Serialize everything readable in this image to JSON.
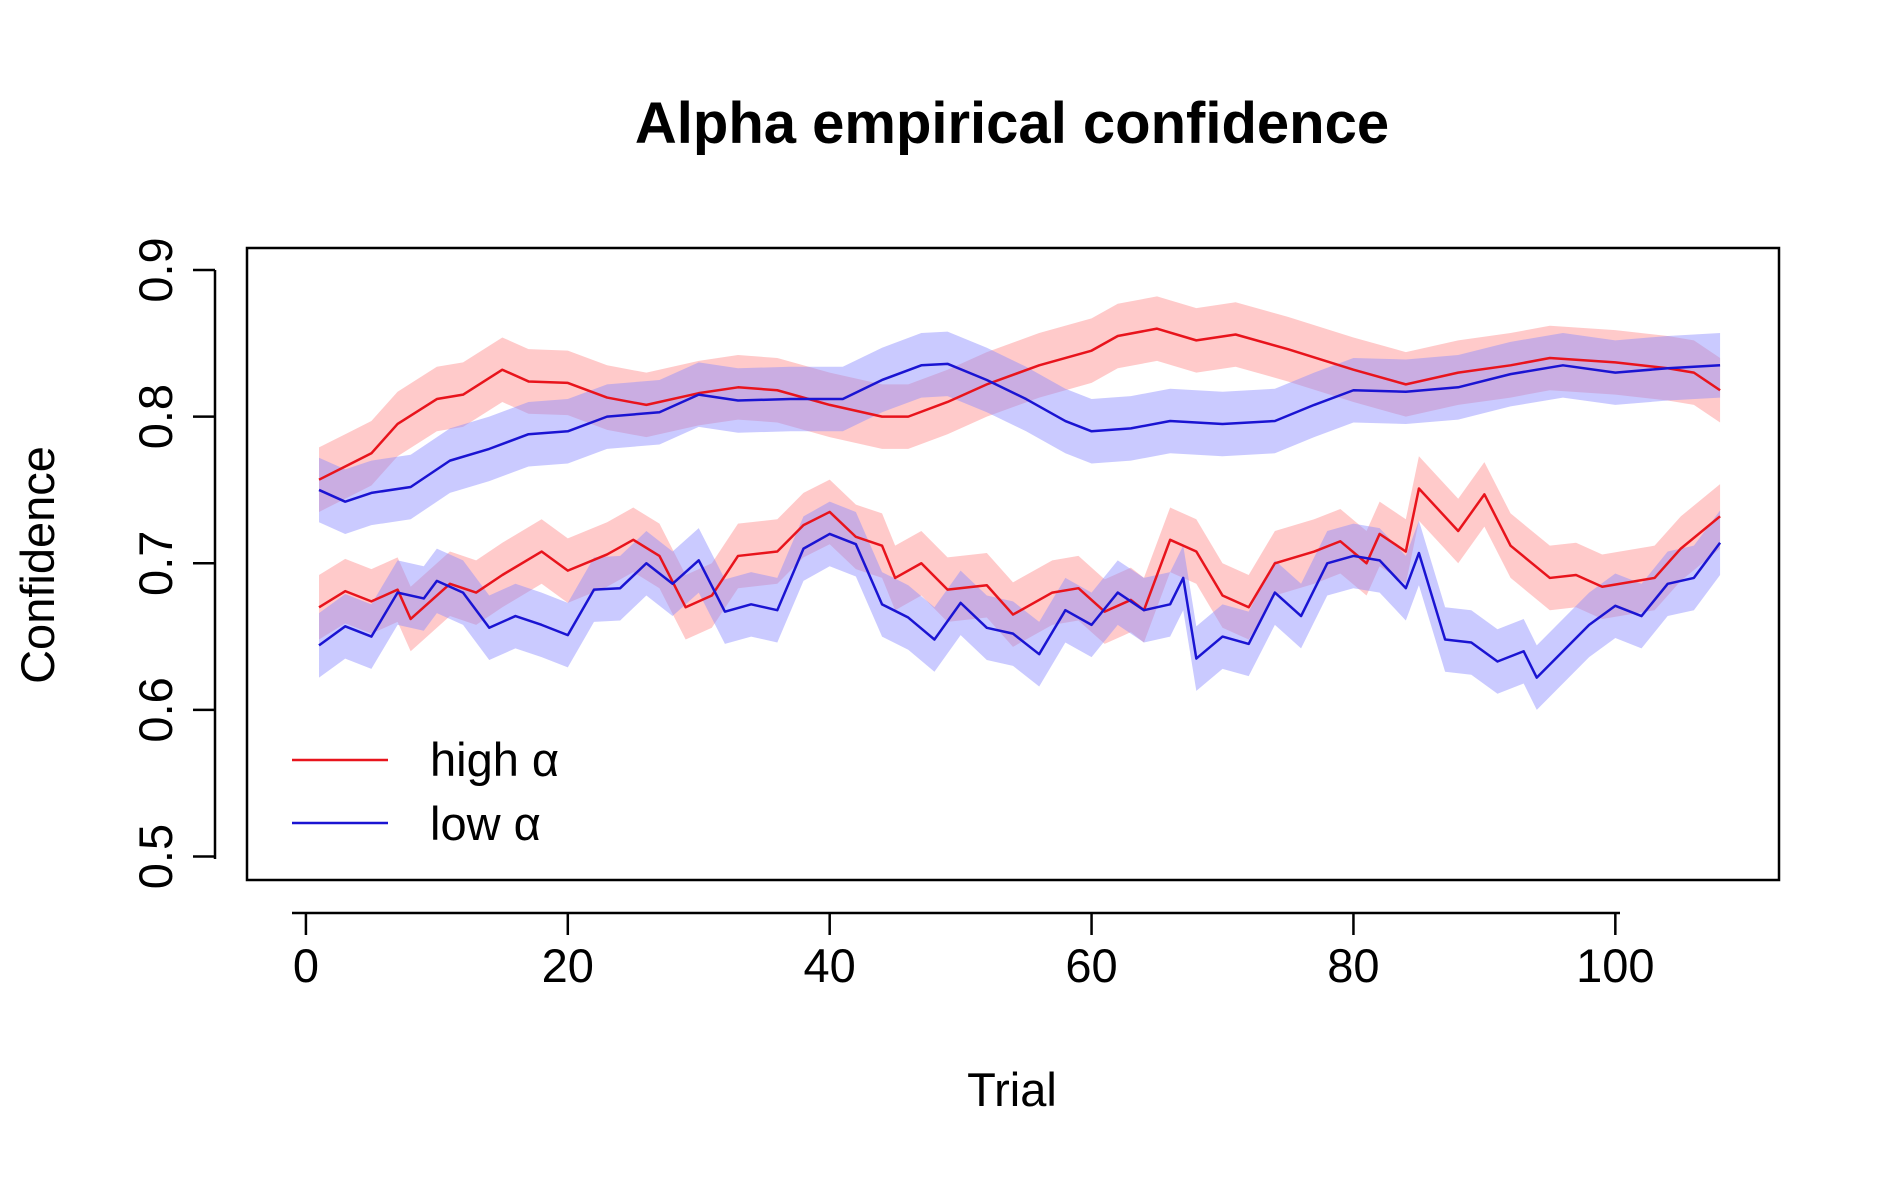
{
  "chart_data": {
    "type": "line",
    "title": "Alpha empirical confidence",
    "xlabel": "Trial",
    "ylabel": "Confidence",
    "xlim": [
      -4.5,
      112.5
    ],
    "ylim": [
      0.484,
      0.915
    ],
    "xticks": [
      0,
      20,
      40,
      60,
      80,
      100
    ],
    "yticks": [
      0.5,
      0.6,
      0.7,
      0.8,
      0.9
    ],
    "grid": false,
    "legend": {
      "position": "bottom-left",
      "entries": [
        {
          "label": "high α",
          "color": "#e8141c"
        },
        {
          "label": "low α",
          "color": "#1a14d2"
        }
      ]
    },
    "colors": {
      "high_line": "#e8141c",
      "low_line": "#1a14d2",
      "high_band": "#ff8a8a",
      "low_band": "#8a8aff"
    },
    "band_halfwidth": 0.022,
    "series": [
      {
        "group": "high",
        "variant": "upper",
        "points": [
          [
            1,
            0.757
          ],
          [
            3,
            0.766
          ],
          [
            5,
            0.775
          ],
          [
            7,
            0.795
          ],
          [
            10,
            0.812
          ],
          [
            12,
            0.815
          ],
          [
            15,
            0.832
          ],
          [
            17,
            0.824
          ],
          [
            20,
            0.823
          ],
          [
            23,
            0.813
          ],
          [
            26,
            0.808
          ],
          [
            30,
            0.816
          ],
          [
            33,
            0.82
          ],
          [
            36,
            0.818
          ],
          [
            40,
            0.808
          ],
          [
            44,
            0.8
          ],
          [
            46,
            0.8
          ],
          [
            49,
            0.81
          ],
          [
            52,
            0.822
          ],
          [
            56,
            0.835
          ],
          [
            60,
            0.845
          ],
          [
            62,
            0.855
          ],
          [
            65,
            0.86
          ],
          [
            68,
            0.852
          ],
          [
            71,
            0.856
          ],
          [
            75,
            0.846
          ],
          [
            80,
            0.832
          ],
          [
            84,
            0.822
          ],
          [
            88,
            0.83
          ],
          [
            92,
            0.835
          ],
          [
            95,
            0.84
          ],
          [
            100,
            0.837
          ],
          [
            104,
            0.833
          ],
          [
            106,
            0.83
          ],
          [
            108,
            0.818
          ]
        ]
      },
      {
        "group": "low",
        "variant": "upper",
        "points": [
          [
            1,
            0.75
          ],
          [
            3,
            0.742
          ],
          [
            5,
            0.748
          ],
          [
            8,
            0.752
          ],
          [
            11,
            0.77
          ],
          [
            14,
            0.778
          ],
          [
            17,
            0.788
          ],
          [
            20,
            0.79
          ],
          [
            23,
            0.8
          ],
          [
            27,
            0.803
          ],
          [
            30,
            0.815
          ],
          [
            33,
            0.811
          ],
          [
            37,
            0.812
          ],
          [
            41,
            0.812
          ],
          [
            44,
            0.825
          ],
          [
            47,
            0.835
          ],
          [
            49,
            0.836
          ],
          [
            52,
            0.825
          ],
          [
            55,
            0.812
          ],
          [
            58,
            0.797
          ],
          [
            60,
            0.79
          ],
          [
            63,
            0.792
          ],
          [
            66,
            0.797
          ],
          [
            70,
            0.795
          ],
          [
            74,
            0.797
          ],
          [
            77,
            0.808
          ],
          [
            80,
            0.818
          ],
          [
            84,
            0.817
          ],
          [
            88,
            0.82
          ],
          [
            92,
            0.829
          ],
          [
            96,
            0.835
          ],
          [
            100,
            0.83
          ],
          [
            104,
            0.833
          ],
          [
            108,
            0.835
          ]
        ]
      },
      {
        "group": "high",
        "variant": "lower",
        "points": [
          [
            1,
            0.67
          ],
          [
            3,
            0.681
          ],
          [
            5,
            0.674
          ],
          [
            7,
            0.682
          ],
          [
            8,
            0.662
          ],
          [
            11,
            0.686
          ],
          [
            13,
            0.68
          ],
          [
            15,
            0.692
          ],
          [
            18,
            0.708
          ],
          [
            20,
            0.695
          ],
          [
            23,
            0.706
          ],
          [
            25,
            0.716
          ],
          [
            27,
            0.705
          ],
          [
            29,
            0.67
          ],
          [
            31,
            0.678
          ],
          [
            33,
            0.705
          ],
          [
            36,
            0.708
          ],
          [
            38,
            0.726
          ],
          [
            40,
            0.735
          ],
          [
            42,
            0.718
          ],
          [
            44,
            0.712
          ],
          [
            45,
            0.69
          ],
          [
            47,
            0.7
          ],
          [
            49,
            0.682
          ],
          [
            52,
            0.685
          ],
          [
            54,
            0.665
          ],
          [
            57,
            0.68
          ],
          [
            59,
            0.683
          ],
          [
            61,
            0.667
          ],
          [
            63,
            0.675
          ],
          [
            64,
            0.668
          ],
          [
            66,
            0.716
          ],
          [
            68,
            0.708
          ],
          [
            70,
            0.678
          ],
          [
            72,
            0.67
          ],
          [
            74,
            0.7
          ],
          [
            77,
            0.708
          ],
          [
            79,
            0.715
          ],
          [
            81,
            0.7
          ],
          [
            82,
            0.72
          ],
          [
            84,
            0.708
          ],
          [
            85,
            0.751
          ],
          [
            88,
            0.722
          ],
          [
            90,
            0.747
          ],
          [
            92,
            0.712
          ],
          [
            95,
            0.69
          ],
          [
            97,
            0.692
          ],
          [
            99,
            0.684
          ],
          [
            103,
            0.69
          ],
          [
            105,
            0.71
          ],
          [
            108,
            0.732
          ]
        ]
      },
      {
        "group": "low",
        "variant": "lower",
        "points": [
          [
            1,
            0.644
          ],
          [
            3,
            0.657
          ],
          [
            5,
            0.65
          ],
          [
            7,
            0.68
          ],
          [
            9,
            0.676
          ],
          [
            10,
            0.688
          ],
          [
            12,
            0.68
          ],
          [
            14,
            0.656
          ],
          [
            16,
            0.664
          ],
          [
            18,
            0.658
          ],
          [
            20,
            0.651
          ],
          [
            22,
            0.682
          ],
          [
            24,
            0.683
          ],
          [
            26,
            0.7
          ],
          [
            28,
            0.686
          ],
          [
            30,
            0.702
          ],
          [
            32,
            0.667
          ],
          [
            34,
            0.672
          ],
          [
            36,
            0.668
          ],
          [
            38,
            0.71
          ],
          [
            40,
            0.72
          ],
          [
            42,
            0.713
          ],
          [
            44,
            0.672
          ],
          [
            46,
            0.663
          ],
          [
            48,
            0.648
          ],
          [
            50,
            0.673
          ],
          [
            52,
            0.656
          ],
          [
            54,
            0.652
          ],
          [
            56,
            0.638
          ],
          [
            58,
            0.668
          ],
          [
            60,
            0.658
          ],
          [
            62,
            0.68
          ],
          [
            64,
            0.668
          ],
          [
            66,
            0.672
          ],
          [
            67,
            0.69
          ],
          [
            68,
            0.635
          ],
          [
            70,
            0.65
          ],
          [
            72,
            0.645
          ],
          [
            74,
            0.68
          ],
          [
            76,
            0.664
          ],
          [
            78,
            0.7
          ],
          [
            80,
            0.705
          ],
          [
            82,
            0.702
          ],
          [
            84,
            0.683
          ],
          [
            85,
            0.707
          ],
          [
            87,
            0.648
          ],
          [
            89,
            0.646
          ],
          [
            91,
            0.633
          ],
          [
            93,
            0.64
          ],
          [
            94,
            0.622
          ],
          [
            96,
            0.64
          ],
          [
            98,
            0.658
          ],
          [
            100,
            0.671
          ],
          [
            102,
            0.664
          ],
          [
            104,
            0.686
          ],
          [
            106,
            0.69
          ],
          [
            108,
            0.714
          ]
        ]
      }
    ]
  }
}
